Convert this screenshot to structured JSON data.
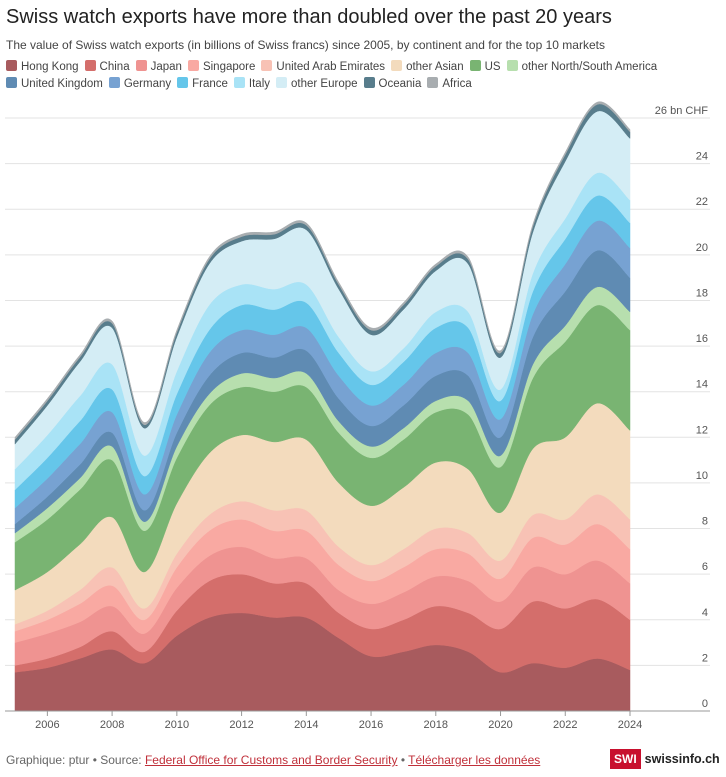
{
  "header": {
    "title": "Swiss watch exports have more than doubled over the past 20 years",
    "subtitle": "The value of Swiss watch exports (in billions of Swiss francs) since 2005, by continent and for the top 10 markets"
  },
  "footer": {
    "credit": "Graphique: ptur • Source: ",
    "source_link": "Federal Office for Customs and Border Security",
    "separator": " • ",
    "download_link": "Télécharger les données",
    "logo_badge": "SWI",
    "logo_text": "swissinfo.ch"
  },
  "chart_data": {
    "type": "area",
    "stacked": true,
    "title": "Swiss watch exports have more than doubled over the past 20 years",
    "unit": "26 bn CHF",
    "x": [
      2005,
      2006,
      2007,
      2008,
      2009,
      2010,
      2011,
      2012,
      2013,
      2014,
      2015,
      2016,
      2017,
      2018,
      2019,
      2020,
      2021,
      2022,
      2023,
      2024
    ],
    "x_ticks": [
      2006,
      2008,
      2010,
      2012,
      2014,
      2016,
      2018,
      2020,
      2022,
      2024
    ],
    "x_tick_labels": [
      "2006",
      "2008",
      "2010",
      "2012",
      "2014",
      "2016",
      "2018",
      "2020",
      "2022",
      "2024"
    ],
    "y_ticks": [
      0,
      2,
      4,
      6,
      8,
      10,
      12,
      14,
      16,
      18,
      20,
      22,
      24,
      26
    ],
    "y_tick_labels": [
      "0",
      "2",
      "4",
      "6",
      "8",
      "10",
      "12",
      "14",
      "16",
      "18",
      "20",
      "22",
      "24",
      "26 bn CHF"
    ],
    "ylim": [
      0,
      26
    ],
    "grid": true,
    "legend_position": "top",
    "series": [
      {
        "name": "Hong Kong",
        "color": "#a85b5e",
        "values": [
          1.7,
          1.9,
          2.3,
          2.7,
          2.1,
          3.3,
          4.1,
          4.3,
          4.1,
          4.1,
          3.2,
          2.4,
          2.6,
          2.9,
          2.6,
          1.7,
          2.1,
          1.9,
          2.3,
          1.8
        ]
      },
      {
        "name": "China",
        "color": "#d46e6b",
        "values": [
          0.3,
          0.4,
          0.5,
          0.8,
          0.5,
          1.1,
          1.6,
          1.7,
          1.5,
          1.5,
          1.1,
          1.2,
          1.4,
          1.7,
          1.7,
          1.9,
          2.7,
          2.6,
          2.6,
          2.2
        ]
      },
      {
        "name": "Japan",
        "color": "#ef9391",
        "values": [
          1.0,
          1.1,
          1.1,
          1.1,
          0.8,
          1.0,
          1.1,
          1.2,
          1.1,
          1.1,
          1.0,
          1.1,
          1.2,
          1.3,
          1.4,
          1.2,
          1.5,
          1.5,
          1.7,
          1.6
        ]
      },
      {
        "name": "Singapore",
        "color": "#f9a9a2",
        "values": [
          0.5,
          0.6,
          0.8,
          0.9,
          0.6,
          0.9,
          1.1,
          1.2,
          1.2,
          1.2,
          1.1,
          1.0,
          1.1,
          1.2,
          1.2,
          1.0,
          1.3,
          1.3,
          1.6,
          1.5
        ]
      },
      {
        "name": "United Arab Emirates",
        "color": "#f8c2b5",
        "values": [
          0.3,
          0.4,
          0.6,
          0.8,
          0.5,
          0.6,
          0.7,
          0.8,
          0.9,
          0.9,
          0.8,
          0.7,
          0.8,
          0.9,
          0.9,
          0.8,
          1.0,
          1.1,
          1.3,
          1.3
        ]
      },
      {
        "name": "other Asian",
        "color": "#f3dbbd",
        "values": [
          1.5,
          1.7,
          2.0,
          2.2,
          1.6,
          2.2,
          2.7,
          2.9,
          3.0,
          3.1,
          2.8,
          2.6,
          2.7,
          2.9,
          2.8,
          2.1,
          2.9,
          3.6,
          4.0,
          3.9
        ]
      },
      {
        "name": "US",
        "color": "#79b472",
        "values": [
          2.1,
          2.3,
          2.4,
          2.5,
          1.8,
          2.0,
          2.1,
          2.1,
          2.2,
          2.3,
          2.2,
          2.1,
          2.1,
          2.2,
          2.4,
          2.0,
          3.1,
          4.2,
          4.3,
          4.4
        ]
      },
      {
        "name": "other North/South America",
        "color": "#b7dfae",
        "values": [
          0.4,
          0.5,
          0.5,
          0.6,
          0.4,
          0.5,
          0.5,
          0.6,
          0.6,
          0.6,
          0.5,
          0.5,
          0.5,
          0.5,
          0.6,
          0.5,
          0.6,
          0.7,
          0.8,
          0.8
        ]
      },
      {
        "name": "United Kingdom",
        "color": "#5f8bb3",
        "values": [
          0.4,
          0.5,
          0.6,
          0.6,
          0.5,
          0.6,
          0.8,
          0.9,
          0.9,
          1.0,
          1.0,
          0.9,
          1.0,
          1.1,
          1.1,
          0.8,
          1.2,
          1.5,
          1.6,
          1.5
        ]
      },
      {
        "name": "Germany",
        "color": "#77a2d2",
        "values": [
          0.7,
          0.8,
          0.9,
          0.9,
          0.7,
          0.8,
          1.0,
          1.0,
          1.0,
          1.0,
          1.0,
          0.9,
          0.9,
          1.0,
          1.0,
          0.8,
          1.0,
          1.2,
          1.3,
          1.3
        ]
      },
      {
        "name": "France",
        "color": "#65c6ea",
        "values": [
          0.8,
          0.9,
          1.0,
          1.0,
          0.8,
          0.9,
          1.0,
          1.1,
          1.1,
          1.1,
          1.0,
          0.9,
          1.0,
          1.1,
          1.1,
          0.8,
          1.0,
          1.1,
          1.1,
          1.1
        ]
      },
      {
        "name": "Italy",
        "color": "#a9e3f6",
        "values": [
          0.9,
          1.0,
          1.1,
          1.1,
          0.9,
          1.0,
          1.1,
          0.9,
          0.9,
          0.8,
          0.7,
          0.6,
          0.6,
          0.7,
          0.7,
          0.5,
          0.8,
          0.9,
          1.0,
          1.0
        ]
      },
      {
        "name": "other Europe",
        "color": "#d4edf5",
        "values": [
          1.1,
          1.3,
          1.5,
          1.6,
          1.2,
          1.5,
          1.8,
          1.9,
          2.2,
          2.4,
          2.1,
          1.6,
          1.7,
          1.8,
          2.1,
          1.4,
          1.8,
          2.5,
          2.7,
          2.7
        ]
      },
      {
        "name": "Oceania",
        "color": "#587d8c",
        "values": [
          0.2,
          0.2,
          0.2,
          0.2,
          0.15,
          0.2,
          0.2,
          0.2,
          0.2,
          0.2,
          0.2,
          0.2,
          0.2,
          0.2,
          0.2,
          0.2,
          0.25,
          0.3,
          0.3,
          0.3
        ]
      },
      {
        "name": "Africa",
        "color": "#a8adb0",
        "values": [
          0.1,
          0.1,
          0.1,
          0.1,
          0.1,
          0.1,
          0.1,
          0.1,
          0.1,
          0.1,
          0.1,
          0.1,
          0.1,
          0.1,
          0.1,
          0.1,
          0.1,
          0.1,
          0.1,
          0.1
        ]
      }
    ]
  }
}
